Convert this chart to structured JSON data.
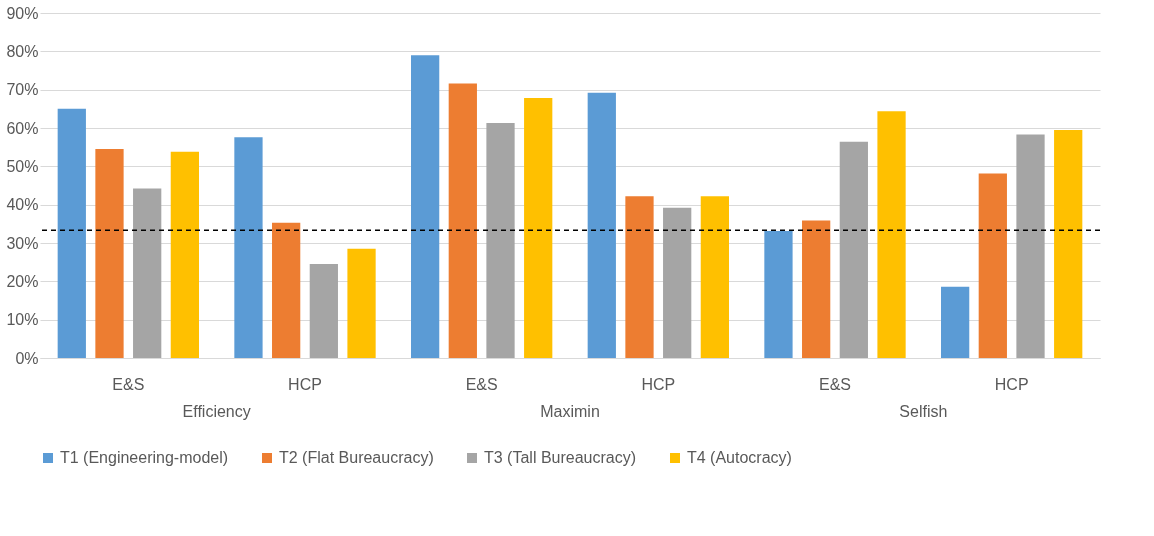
{
  "chart_data": {
    "type": "bar",
    "categories": [
      "E&S",
      "HCP",
      "E&S",
      "HCP",
      "E&S",
      "HCP"
    ],
    "series": [
      {
        "name": "T1 (Engineering-model)",
        "color": "#5b9bd5",
        "values": [
          65,
          57.6,
          79,
          69.2,
          33.1,
          18.6
        ]
      },
      {
        "name": "T2 (Flat Bureaucracy)",
        "color": "#ed7d31",
        "values": [
          54.5,
          35.3,
          71.6,
          42.2,
          35.9,
          48.1
        ]
      },
      {
        "name": "T3 (Tall Bureaucracy)",
        "color": "#a5a5a5",
        "values": [
          44.2,
          24.5,
          61.3,
          39.2,
          56.4,
          58.3
        ]
      },
      {
        "name": "T4 (Autocracy)",
        "color": "#ffc000",
        "values": [
          53.8,
          28.5,
          67.8,
          42.2,
          64.4,
          59.5
        ]
      }
    ],
    "annotations": [
      "Efficiency",
      "Maximin",
      "Selfish"
    ],
    "ylim": [
      0,
      90
    ],
    "yticks": [
      {
        "value": 0,
        "label": "0%"
      },
      {
        "value": 10,
        "label": "10%"
      },
      {
        "value": 20,
        "label": "20%"
      },
      {
        "value": 30,
        "label": "30%"
      },
      {
        "value": 40,
        "label": "40%"
      },
      {
        "value": 50,
        "label": "50%"
      },
      {
        "value": 60,
        "label": "60%"
      },
      {
        "value": 70,
        "label": "70%"
      },
      {
        "value": 80,
        "label": "80%"
      },
      {
        "value": 90,
        "label": "90%"
      }
    ],
    "ref_lines": [
      {
        "axis": "y",
        "value": 33.3,
        "color": "#000000",
        "line_style": "dashed"
      }
    ],
    "grid": "y",
    "legend": "bottom"
  }
}
